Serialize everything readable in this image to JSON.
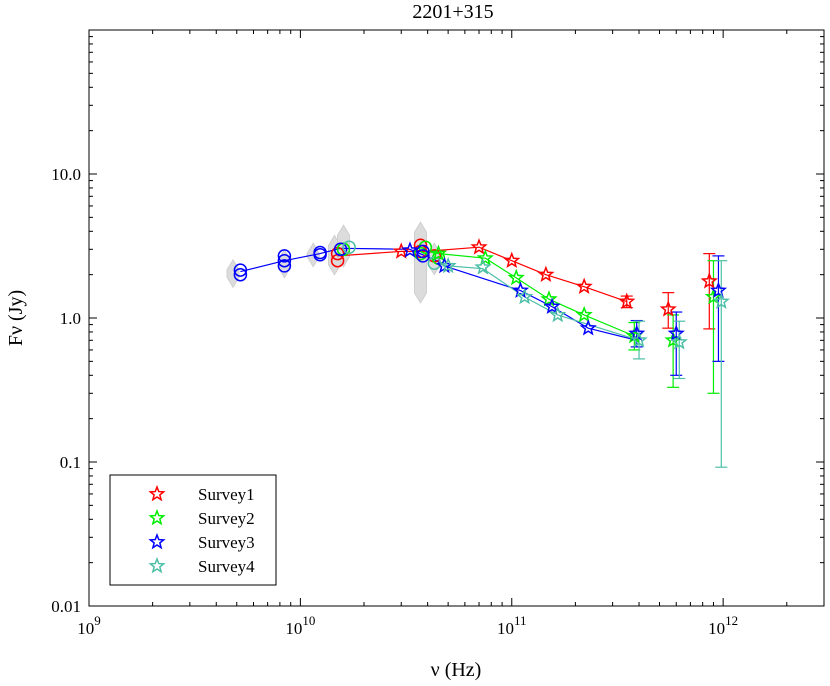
{
  "chart_data": {
    "type": "scatter",
    "title": "2201+315",
    "xlabel": "ν (Hz)",
    "ylabel": "Fν (Jy)",
    "xscale": "log",
    "yscale": "log",
    "xlim": [
      1000000000.0,
      3000000000000.0
    ],
    "ylim": [
      0.01,
      100
    ],
    "x_ticks": [
      {
        "value": 1000000000.0,
        "base": "10",
        "exp": "9"
      },
      {
        "value": 10000000000.0,
        "base": "10",
        "exp": "10"
      },
      {
        "value": 100000000000.0,
        "base": "10",
        "exp": "11"
      },
      {
        "value": 1000000000000.0,
        "base": "10",
        "exp": "12"
      }
    ],
    "y_ticks": [
      {
        "value": 0.01,
        "label": "0.01"
      },
      {
        "value": 0.1,
        "label": "0.1"
      },
      {
        "value": 1,
        "label": "1.0"
      },
      {
        "value": 10,
        "label": "10.0"
      }
    ],
    "legend_position": "bottom-left",
    "gray_markers": [
      {
        "x": 4800000000.0,
        "lo": 1.8,
        "hi": 2.3
      },
      {
        "x": 8400000000.0,
        "lo": 2.1,
        "hi": 2.7
      },
      {
        "x": 11500000000.0,
        "lo": 2.5,
        "hi": 3.0
      },
      {
        "x": 14500000000.0,
        "lo": 2.2,
        "hi": 3.4
      },
      {
        "x": 16000000000.0,
        "lo": 2.5,
        "hi": 4.0
      },
      {
        "x": 37000000000.0,
        "lo": 1.4,
        "hi": 4.2
      },
      {
        "x": 43000000000.0,
        "lo": 2.2,
        "hi": 3.0
      }
    ],
    "circles": [
      {
        "series": "Survey1",
        "points": [
          [
            15000000000.0,
            2.5
          ],
          [
            15000000000.0,
            2.8
          ],
          [
            37000000000.0,
            2.9
          ],
          [
            37000000000.0,
            3.2
          ],
          [
            43000000000.0,
            2.7
          ]
        ]
      },
      {
        "series": "Survey2",
        "points": [
          [
            16000000000.0,
            3.0
          ],
          [
            37000000000.0,
            2.8
          ],
          [
            39000000000.0,
            3.1
          ],
          [
            45000000000.0,
            2.6
          ]
        ]
      },
      {
        "series": "Survey3",
        "points": [
          [
            5200000000.0,
            2.0
          ],
          [
            5200000000.0,
            2.15
          ],
          [
            8400000000.0,
            2.3
          ],
          [
            8400000000.0,
            2.5
          ],
          [
            8400000000.0,
            2.7
          ],
          [
            12400000000.0,
            2.75
          ],
          [
            12400000000.0,
            2.85
          ],
          [
            15500000000.0,
            3.0
          ],
          [
            38000000000.0,
            2.7
          ],
          [
            38000000000.0,
            2.9
          ]
        ]
      },
      {
        "series": "Survey4",
        "points": [
          [
            17000000000.0,
            3.1
          ],
          [
            43000000000.0,
            2.4
          ]
        ]
      }
    ],
    "series": [
      {
        "name": "Survey1",
        "color": "#ff0000",
        "line": [
          [
            15000000000.0,
            2.7
          ],
          [
            30000000000.0,
            2.9
          ],
          [
            39000000000.0,
            2.9
          ],
          [
            70000000000.0,
            3.1
          ],
          [
            100000000000.0,
            2.5
          ],
          [
            145000000000.0,
            2.0
          ],
          [
            220000000000.0,
            1.65
          ],
          [
            350000000000.0,
            1.3
          ]
        ],
        "stars": [
          {
            "x": 30000000000.0,
            "y": 2.9
          },
          {
            "x": 70000000000.0,
            "y": 3.1
          },
          {
            "x": 100000000000.0,
            "y": 2.5
          },
          {
            "x": 145000000000.0,
            "y": 2.0
          },
          {
            "x": 220000000000.0,
            "y": 1.65
          },
          {
            "x": 350000000000.0,
            "y": 1.3,
            "lo": 1.18,
            "hi": 1.42
          },
          {
            "x": 550000000000.0,
            "y": 1.15,
            "lo": 0.85,
            "hi": 1.5
          },
          {
            "x": 860000000000.0,
            "y": 1.8,
            "lo": 0.84,
            "hi": 2.8
          }
        ]
      },
      {
        "name": "Survey2",
        "color": "#00ee00",
        "line": [
          [
            40000000000.0,
            2.9
          ],
          [
            45000000000.0,
            2.8
          ],
          [
            75000000000.0,
            2.6
          ],
          [
            105000000000.0,
            1.9
          ],
          [
            150000000000.0,
            1.35
          ],
          [
            220000000000.0,
            1.05
          ],
          [
            380000000000.0,
            0.75
          ]
        ],
        "stars": [
          {
            "x": 45000000000.0,
            "y": 2.8
          },
          {
            "x": 75000000000.0,
            "y": 2.6
          },
          {
            "x": 105000000000.0,
            "y": 1.9
          },
          {
            "x": 150000000000.0,
            "y": 1.35
          },
          {
            "x": 220000000000.0,
            "y": 1.05
          },
          {
            "x": 380000000000.0,
            "y": 0.75,
            "lo": 0.6,
            "hi": 0.93
          },
          {
            "x": 580000000000.0,
            "y": 0.7,
            "lo": 0.33,
            "hi": 1.05
          },
          {
            "x": 900000000000.0,
            "y": 1.4,
            "lo": 0.3,
            "hi": 2.5
          }
        ]
      },
      {
        "name": "Survey3",
        "color": "#0000ff",
        "line": [
          [
            5200000000.0,
            2.1
          ],
          [
            8400000000.0,
            2.5
          ],
          [
            12400000000.0,
            2.8
          ],
          [
            15500000000.0,
            3.05
          ],
          [
            33000000000.0,
            3.0
          ],
          [
            44000000000.0,
            2.5
          ],
          [
            48000000000.0,
            2.3
          ],
          [
            110000000000.0,
            1.55
          ],
          [
            155000000000.0,
            1.2
          ],
          [
            230000000000.0,
            0.85
          ],
          [
            390000000000.0,
            0.7
          ]
        ],
        "stars": [
          {
            "x": 33000000000.0,
            "y": 2.95
          },
          {
            "x": 48000000000.0,
            "y": 2.3
          },
          {
            "x": 110000000000.0,
            "y": 1.55
          },
          {
            "x": 155000000000.0,
            "y": 1.2
          },
          {
            "x": 230000000000.0,
            "y": 0.85
          },
          {
            "x": 390000000000.0,
            "y": 0.78,
            "lo": 0.63,
            "hi": 0.96
          },
          {
            "x": 600000000000.0,
            "y": 0.78,
            "lo": 0.4,
            "hi": 1.1
          },
          {
            "x": 950000000000.0,
            "y": 1.55,
            "lo": 0.5,
            "hi": 2.7
          }
        ]
      },
      {
        "name": "Survey4",
        "color": "#4dbfa6",
        "line": [
          [
            43000000000.0,
            2.4
          ],
          [
            50000000000.0,
            2.3
          ],
          [
            73000000000.0,
            2.2
          ],
          [
            115000000000.0,
            1.4
          ],
          [
            165000000000.0,
            1.05
          ],
          [
            400000000000.0,
            0.7
          ]
        ],
        "stars": [
          {
            "x": 50000000000.0,
            "y": 2.3
          },
          {
            "x": 73000000000.0,
            "y": 2.25
          },
          {
            "x": 115000000000.0,
            "y": 1.4
          },
          {
            "x": 165000000000.0,
            "y": 1.05
          },
          {
            "x": 400000000000.0,
            "y": 0.7,
            "lo": 0.52,
            "hi": 0.95
          },
          {
            "x": 620000000000.0,
            "y": 0.68,
            "lo": 0.38,
            "hi": 0.95
          },
          {
            "x": 980000000000.0,
            "y": 1.3,
            "lo": 0.092,
            "hi": 2.5
          }
        ]
      }
    ]
  }
}
